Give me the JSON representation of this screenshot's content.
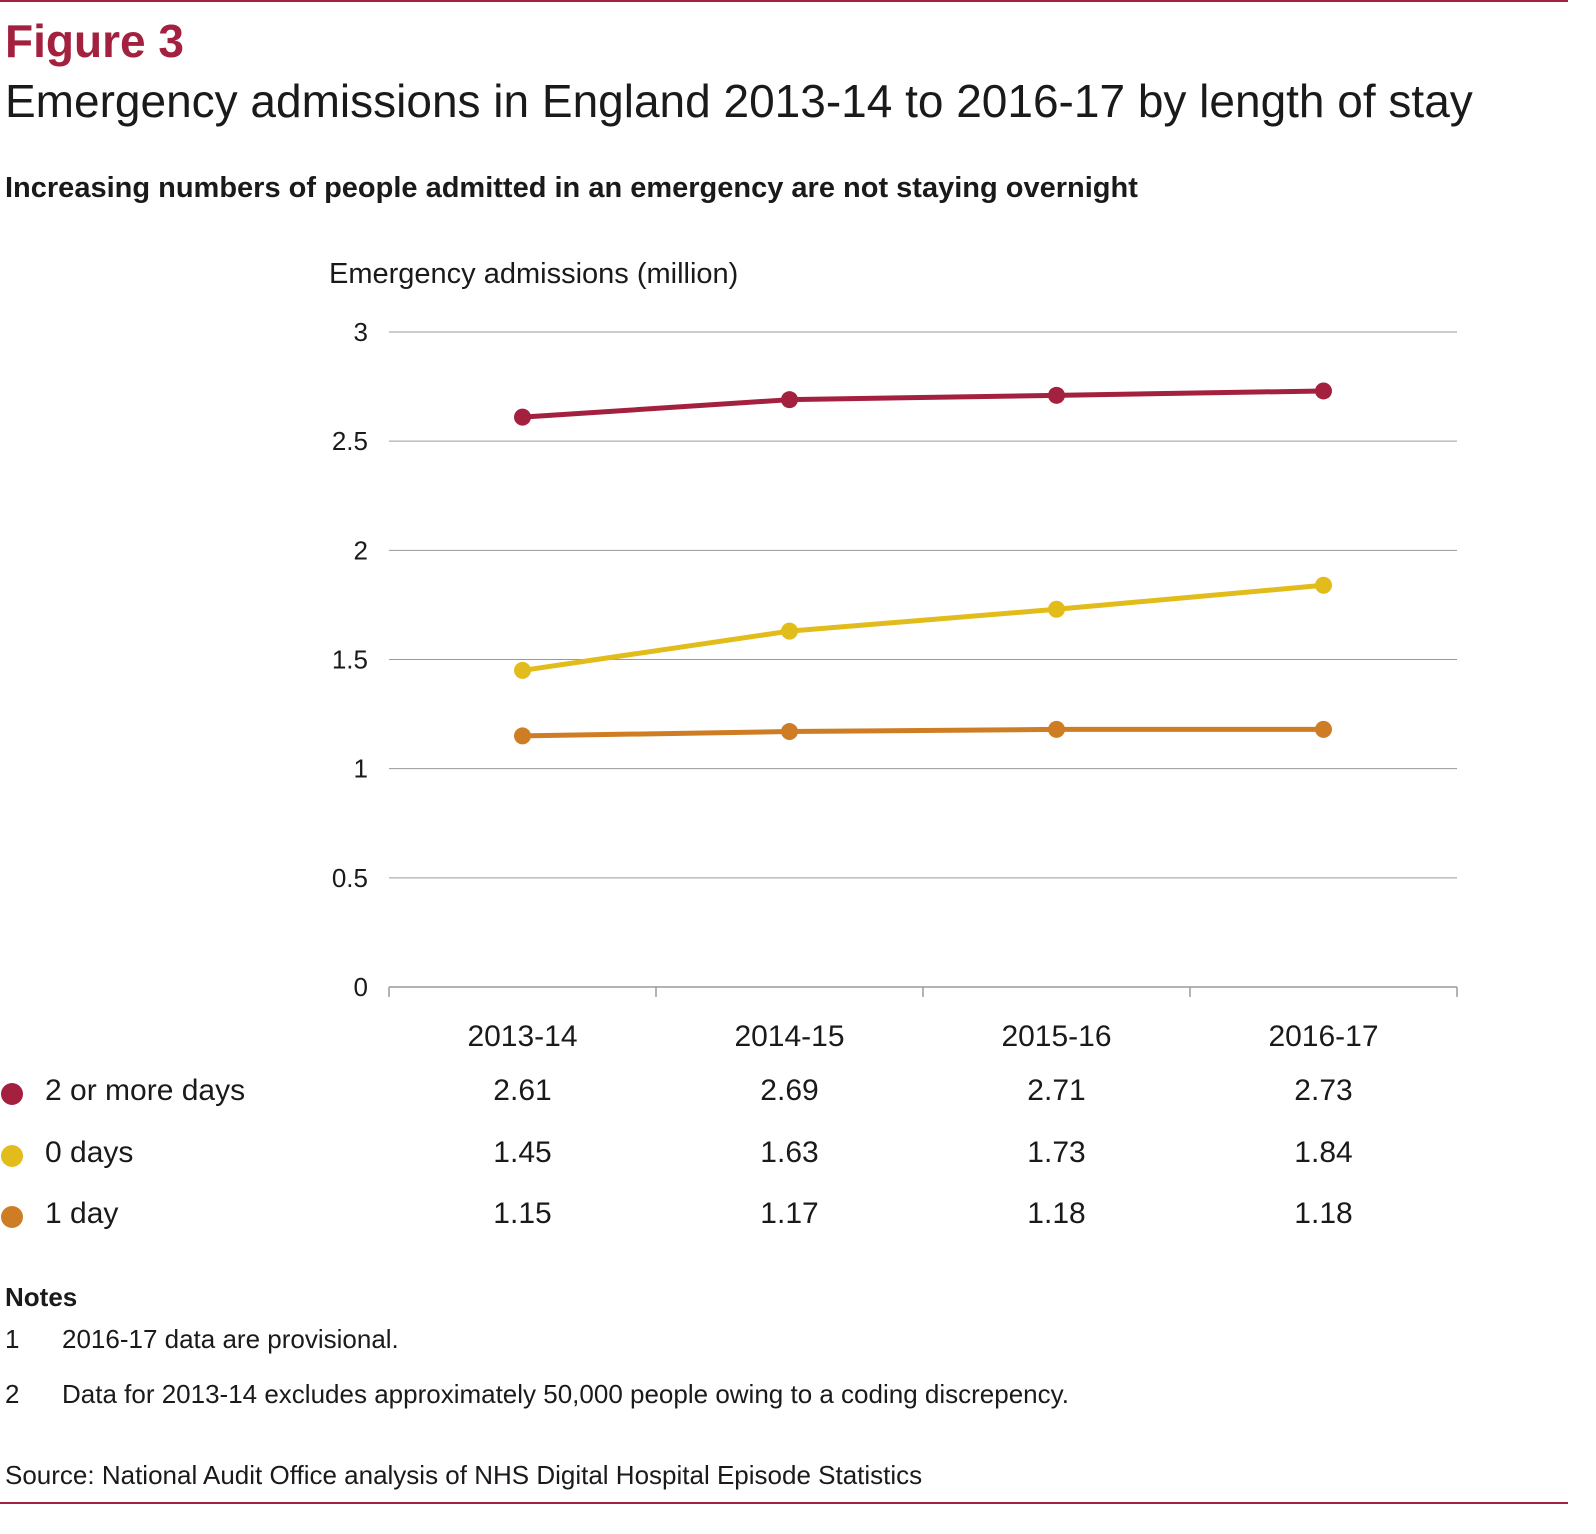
{
  "figure_label": "Figure 3",
  "title": "Emergency admissions in England 2013-14 to 2016-17 by length of stay",
  "subtitle": "Increasing numbers of people admitted in an emergency are not staying overnight",
  "colors": {
    "accent": "#a4203f",
    "series_2plus": "#a4203f",
    "series_0": "#e2bc1a",
    "series_1": "#cf7d25",
    "grid": "#9a9a9a"
  },
  "chart_data": {
    "type": "line",
    "ylabel": "Emergency admissions (million)",
    "xlabel": "",
    "ylim": [
      0,
      3
    ],
    "yticks": [
      "0",
      "0.5",
      "1",
      "1.5",
      "2",
      "2.5",
      "3"
    ],
    "grid": true,
    "categories": [
      "2013-14",
      "2014-15",
      "2015-16",
      "2016-17"
    ],
    "series": [
      {
        "name": "2 or more days",
        "values": [
          2.61,
          2.69,
          2.71,
          2.73
        ],
        "labels": [
          "2.61",
          "2.69",
          "2.71",
          "2.73"
        ],
        "color": "#a4203f"
      },
      {
        "name": "0 days",
        "values": [
          1.45,
          1.63,
          1.73,
          1.84
        ],
        "labels": [
          "1.45",
          "1.63",
          "1.73",
          "1.84"
        ],
        "color": "#e2bc1a"
      },
      {
        "name": "1 day",
        "values": [
          1.15,
          1.17,
          1.18,
          1.18
        ],
        "labels": [
          "1.15",
          "1.17",
          "1.18",
          "1.18"
        ],
        "color": "#cf7d25"
      }
    ]
  },
  "notes": {
    "heading": "Notes",
    "items": [
      {
        "num": "1",
        "text": "2016-17 data are provisional."
      },
      {
        "num": "2",
        "text": "Data for 2013-14 excludes approximately 50,000 people owing to a coding discrepency."
      }
    ]
  },
  "source": "Source: National Audit Office analysis of NHS Digital Hospital Episode Statistics"
}
